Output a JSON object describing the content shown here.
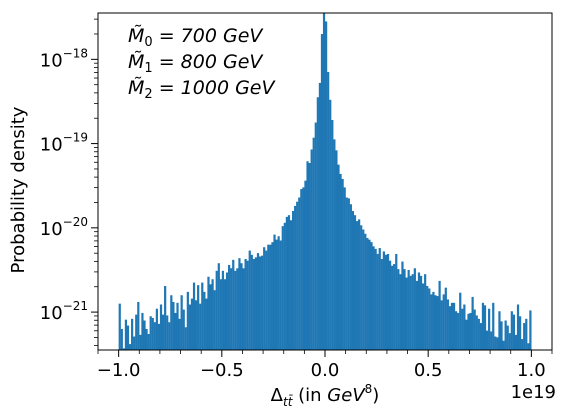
{
  "chart_data": {
    "type": "bar",
    "title": "",
    "annotation_lines": [
      {
        "symbol": "M̃",
        "sub": "0",
        "rest": " = 700 GeV"
      },
      {
        "symbol": "M̃",
        "sub": "1",
        "rest": " = 800 GeV"
      },
      {
        "symbol": "M̃",
        "sub": "2",
        "rest": " = 1000 GeV"
      }
    ],
    "xlabel": {
      "pre": "Δ",
      "sub": "tt̄",
      "mid": " (in ",
      "unit": "GeV",
      "exp": "8",
      "post": ")"
    },
    "ylabel": "Probability density",
    "x_offset_label": "1e19",
    "x_ticks": [
      "−1.0",
      "−0.5",
      "0.0",
      "0.5",
      "1.0"
    ],
    "x_tick_values": [
      -1.0,
      -0.5,
      0.0,
      0.5,
      1.0
    ],
    "y_ticks": [
      {
        "base": "10",
        "exp": "−21",
        "value": -21
      },
      {
        "base": "10",
        "exp": "−20",
        "value": -20
      },
      {
        "base": "10",
        "exp": "−19",
        "value": -19
      },
      {
        "base": "10",
        "exp": "−18",
        "value": -18
      }
    ],
    "xlim": [
      -1.1,
      1.1
    ],
    "ylim_log10": [
      -21.45,
      -17.45
    ],
    "y_scale": "log",
    "x_scale_factor": 1e+19,
    "bar_color": "#1f77b4",
    "bin_width": 0.01,
    "bin_centers_range": [
      -0.995,
      0.995
    ],
    "bin_heights_log10": [
      -20.9,
      -21.2,
      -21.43,
      -21.09,
      -21.16,
      -21.38,
      -21.08,
      -21.29,
      -21.03,
      -20.88,
      -21.27,
      -21.01,
      -21.1,
      -21.2,
      -21.26,
      -21.05,
      -21.07,
      -21.12,
      -20.96,
      -21.14,
      -20.91,
      -21.03,
      -20.69,
      -21.04,
      -21.12,
      -20.8,
      -20.88,
      -21.01,
      -20.89,
      -21.08,
      -20.8,
      -20.97,
      -21.18,
      -20.76,
      -20.91,
      -20.84,
      -20.65,
      -20.86,
      -20.68,
      -20.9,
      -20.65,
      -20.76,
      -20.84,
      -20.58,
      -20.67,
      -20.61,
      -20.74,
      -20.51,
      -20.42,
      -20.61,
      -20.51,
      -20.61,
      -20.53,
      -20.44,
      -20.48,
      -20.38,
      -20.51,
      -20.48,
      -20.36,
      -20.42,
      -20.48,
      -20.37,
      -20.39,
      -20.27,
      -20.32,
      -20.37,
      -20.35,
      -20.3,
      -20.34,
      -20.33,
      -20.23,
      -20.27,
      -20.2,
      -20.2,
      -20.17,
      -20.08,
      -20.14,
      -20.1,
      -20.15,
      -19.98,
      -19.94,
      -19.87,
      -19.85,
      -19.91,
      -19.8,
      -19.74,
      -19.69,
      -19.64,
      -19.54,
      -19.52,
      -19.44,
      -19.21,
      -19.23,
      -19.07,
      -18.93,
      -18.75,
      -18.45,
      -18.28,
      -17.7,
      -17.2,
      -17.55,
      -18.15,
      -18.48,
      -18.72,
      -18.95,
      -19.08,
      -19.25,
      -19.36,
      -19.42,
      -19.52,
      -19.64,
      -19.65,
      -19.72,
      -19.8,
      -19.85,
      -19.92,
      -19.9,
      -19.97,
      -20.02,
      -20.07,
      -20.12,
      -20.14,
      -20.17,
      -20.22,
      -20.25,
      -20.31,
      -20.24,
      -20.37,
      -20.28,
      -20.32,
      -20.31,
      -20.39,
      -20.45,
      -20.43,
      -20.31,
      -20.49,
      -20.55,
      -20.4,
      -20.49,
      -20.59,
      -20.5,
      -20.57,
      -20.55,
      -20.48,
      -20.63,
      -20.53,
      -20.57,
      -20.66,
      -20.55,
      -20.69,
      -20.72,
      -20.79,
      -20.76,
      -20.8,
      -20.81,
      -20.63,
      -20.86,
      -20.79,
      -20.71,
      -20.85,
      -20.93,
      -20.89,
      -20.89,
      -20.99,
      -21.01,
      -20.77,
      -20.96,
      -20.91,
      -21.09,
      -21.02,
      -21.01,
      -20.82,
      -20.97,
      -21.04,
      -21.08,
      -21.13,
      -20.89,
      -20.92,
      -21.22,
      -20.96,
      -21.23,
      -20.89,
      -21.29,
      -21.3,
      -20.99,
      -21.11,
      -21.34,
      -21.1,
      -21.16,
      -21.25,
      -20.99,
      -21.03,
      -21.27,
      -20.91,
      -21.05,
      -21.32,
      -21.13,
      -21.08,
      -21.37,
      -20.98
    ]
  }
}
